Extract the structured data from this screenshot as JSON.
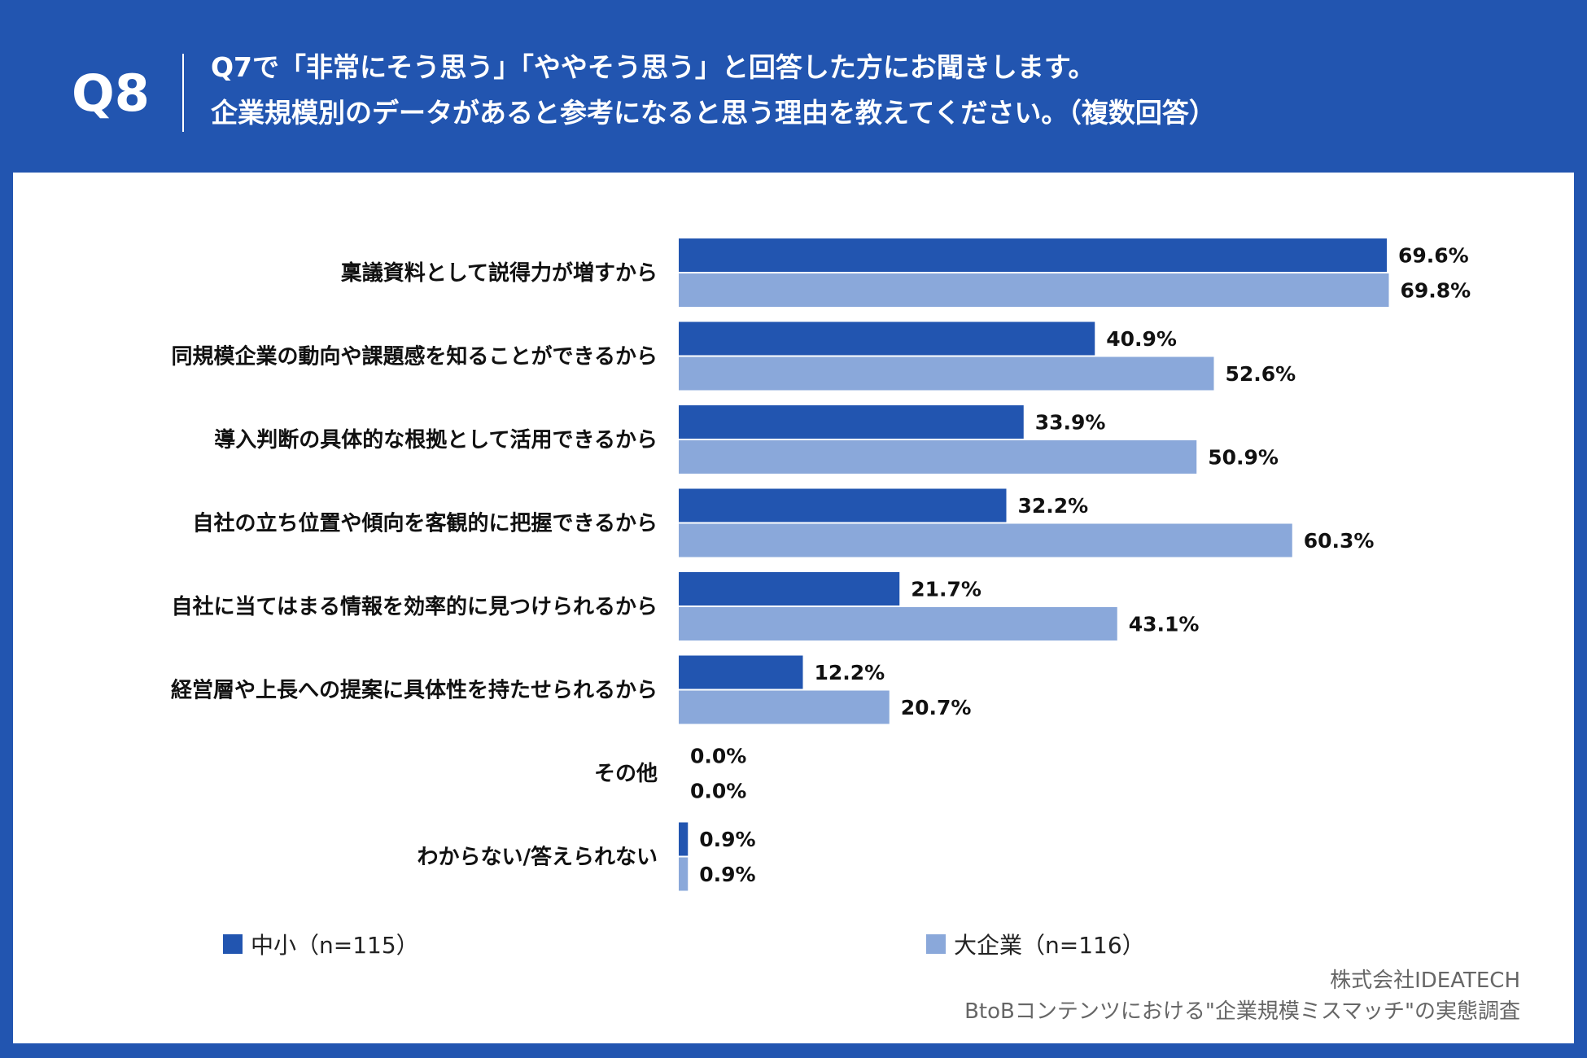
{
  "header": {
    "question_number": "Q8",
    "title_line1": "Q7で「非常にそう思う」「ややそう思う」と回答した方にお聞きします。",
    "title_line2": "企業規模別のデータがあると参考になると思う理由を教えてください。（複数回答）"
  },
  "colors": {
    "header_bg": "#2255b0",
    "series1": "#2255b0",
    "series2": "#8aa8da"
  },
  "chart_data": {
    "type": "bar",
    "orientation": "horizontal",
    "categories": [
      "稟議資料として説得力が増すから",
      "同規模企業の動向や課題感を知ることができるから",
      "導入判断の具体的な根拠として活用できるから",
      "自社の立ち位置や傾向を客観的に把握できるから",
      "自社に当てはまる情報を効率的に見つけられるから",
      "経営層や上長への提案に具体性を持たせられるから",
      "その他",
      "わからない/答えられない"
    ],
    "series": [
      {
        "name": "中小（n=115）",
        "values": [
          69.6,
          40.9,
          33.9,
          32.2,
          21.7,
          12.2,
          0.0,
          0.9
        ],
        "labels": [
          "69.6%",
          "40.9%",
          "33.9%",
          "32.2%",
          "21.7%",
          "12.2%",
          "0.0%",
          "0.9%"
        ]
      },
      {
        "name": "大企業（n=116）",
        "values": [
          69.8,
          52.6,
          50.9,
          60.3,
          43.1,
          20.7,
          0.0,
          0.9
        ],
        "labels": [
          "69.8%",
          "52.6%",
          "50.9%",
          "60.3%",
          "43.1%",
          "20.7%",
          "0.0%",
          "0.9%"
        ]
      }
    ],
    "unit": "%",
    "grid": false,
    "legend_position": "bottom"
  },
  "source": {
    "line1": "株式会社IDEATECH",
    "line2": "BtoBコンテンツにおける\"企業規模ミスマッチ\"の実態調査"
  }
}
